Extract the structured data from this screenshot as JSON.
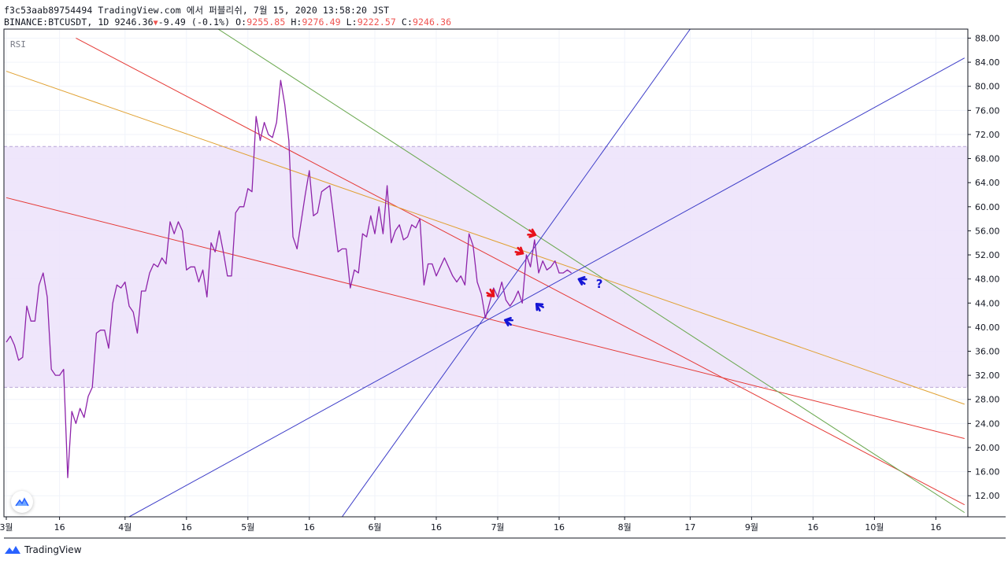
{
  "header": {
    "line1": "f3c53aab89754494 TradingView.com 에서 퍼블리쉬, 7월 15, 2020 13:58:20 JST",
    "symbol": "BINANCE:BTCUSDT, 1D",
    "last": "9246.36",
    "change_arrow": "▼",
    "change": "-9.49 (-0.1%)",
    "o_label": "O:",
    "o_value": "9255.85",
    "h_label": "H:",
    "h_value": "9276.49",
    "l_label": "L:",
    "l_value": "9222.57",
    "c_label": "C:",
    "c_value": "9246.36"
  },
  "indicator_label": "RSI",
  "footer": {
    "brand": "TradingView",
    "logo_icon": "tradingview-logo-icon"
  },
  "colors": {
    "rsi": "#8e24aa",
    "band": "#ede3fb",
    "trend_red": "#e53935",
    "trend_green": "#6aa84f",
    "trend_orange": "#e0a030",
    "trend_blue": "#3d3dc8",
    "arrow_red": "#e8121b",
    "arrow_blue": "#1515d5"
  },
  "chart_data": {
    "type": "line",
    "title": "RSI",
    "ylim": [
      8.5,
      89.5
    ],
    "y_ticks": [
      "12.00",
      "16.00",
      "20.00",
      "24.00",
      "28.00",
      "32.00",
      "36.00",
      "40.00",
      "44.00",
      "48.00",
      "52.00",
      "56.00",
      "60.00",
      "64.00",
      "68.00",
      "72.00",
      "76.00",
      "80.00",
      "84.00",
      "88.00"
    ],
    "x_ticks": [
      {
        "label": "3월",
        "day": 0
      },
      {
        "label": "16",
        "day": 13
      },
      {
        "label": "4월",
        "day": 29
      },
      {
        "label": "16",
        "day": 44
      },
      {
        "label": "5월",
        "day": 59
      },
      {
        "label": "16",
        "day": 74
      },
      {
        "label": "6월",
        "day": 90
      },
      {
        "label": "16",
        "day": 105
      },
      {
        "label": "7월",
        "day": 120
      },
      {
        "label": "16",
        "day": 135
      },
      {
        "label": "8월",
        "day": 151
      },
      {
        "label": "17",
        "day": 167
      },
      {
        "label": "9월",
        "day": 182
      },
      {
        "label": "16",
        "day": 197
      },
      {
        "label": "10월",
        "day": 212
      },
      {
        "label": "16",
        "day": 227
      }
    ],
    "band": [
      30,
      70
    ],
    "series": [
      {
        "values": [
          37.5,
          38.5,
          37.0,
          34.5,
          35.0,
          43.5,
          41.0,
          41.0,
          47.0,
          49.0,
          45.0,
          33.0,
          32.0,
          32.0,
          33.0,
          15.0,
          26.0,
          24.0,
          26.5,
          25.0,
          28.5,
          30.0,
          39.0,
          39.5,
          39.5,
          36.5,
          44.0,
          47.0,
          46.5,
          47.5,
          43.5,
          42.5,
          39.0,
          46.0,
          46.0,
          49.0,
          50.5,
          50.0,
          51.5,
          50.5,
          57.5,
          55.5,
          57.5,
          56.0,
          49.5,
          50.0,
          50.0,
          47.5,
          49.5,
          45.0,
          54.0,
          52.5,
          56.0,
          52.5,
          48.5,
          48.5,
          59.0,
          60.0,
          60.0,
          63.0,
          62.5,
          75.0,
          71.0,
          74.0,
          72.0,
          71.5,
          74.0,
          81.0,
          77.0,
          71.0,
          55.0,
          53.0,
          57.5,
          62.0,
          66.0,
          58.5,
          59.0,
          62.5,
          63.0,
          63.5,
          58.0,
          52.5,
          53.0,
          53.0,
          46.5,
          49.5,
          49.0,
          55.5,
          55.0,
          58.5,
          55.5,
          60.0,
          55.5,
          63.5,
          54.0,
          56.0,
          57.0,
          54.5,
          55.0,
          57.0,
          56.5,
          58.0,
          47.0,
          50.5,
          50.5,
          48.5,
          50.0,
          51.5,
          50.0,
          48.5,
          47.5,
          48.5,
          47.0,
          55.5,
          53.5,
          47.5,
          45.5,
          41.5,
          44.0,
          46.5,
          45.0,
          47.5,
          44.5,
          43.5,
          44.5,
          46.0,
          44.0,
          52.0,
          50.0,
          54.5,
          49.0,
          51.0,
          49.5,
          50.0,
          51.0,
          49.0,
          49.0,
          49.5,
          49.0
        ]
      }
    ],
    "trendlines": [
      {
        "color": "trend_red",
        "x1": 0,
        "y1": 61.5,
        "x2": 234,
        "y2": 21.5
      },
      {
        "color": "trend_red",
        "x1": 17,
        "y1": 88.0,
        "x2": 234,
        "y2": 10.5
      },
      {
        "color": "trend_green",
        "x1": 37,
        "y1": 96.0,
        "x2": 234,
        "y2": 9.2
      },
      {
        "color": "trend_orange",
        "x1": 0,
        "y1": 82.5,
        "x2": 234,
        "y2": 27.2
      },
      {
        "color": "trend_blue",
        "x1": 30,
        "y1": 8.5,
        "x2": 234,
        "y2": 84.7
      },
      {
        "color": "trend_blue",
        "x1": 82,
        "y1": 8.5,
        "x2": 167,
        "y2": 89.5
      }
    ],
    "markers": [
      {
        "kind": "arrow",
        "color": "arrow_red",
        "day": 118.5,
        "value": 45.5,
        "angle": 45
      },
      {
        "kind": "arrow",
        "color": "arrow_red",
        "day": 125.5,
        "value": 52.5,
        "angle": 30
      },
      {
        "kind": "arrow",
        "color": "arrow_red",
        "day": 128.5,
        "value": 55.5,
        "angle": 20
      },
      {
        "kind": "arrow",
        "color": "arrow_blue",
        "day": 122.5,
        "value": 41.0,
        "angle": 200
      },
      {
        "kind": "arrow",
        "color": "arrow_blue",
        "day": 130.0,
        "value": 43.5,
        "angle": 225
      },
      {
        "kind": "arrow",
        "color": "arrow_blue",
        "day": 140.5,
        "value": 47.8,
        "angle": 200
      },
      {
        "kind": "text",
        "color": "arrow_blue",
        "day": 144.0,
        "value": 47.2,
        "text": "?"
      }
    ]
  }
}
